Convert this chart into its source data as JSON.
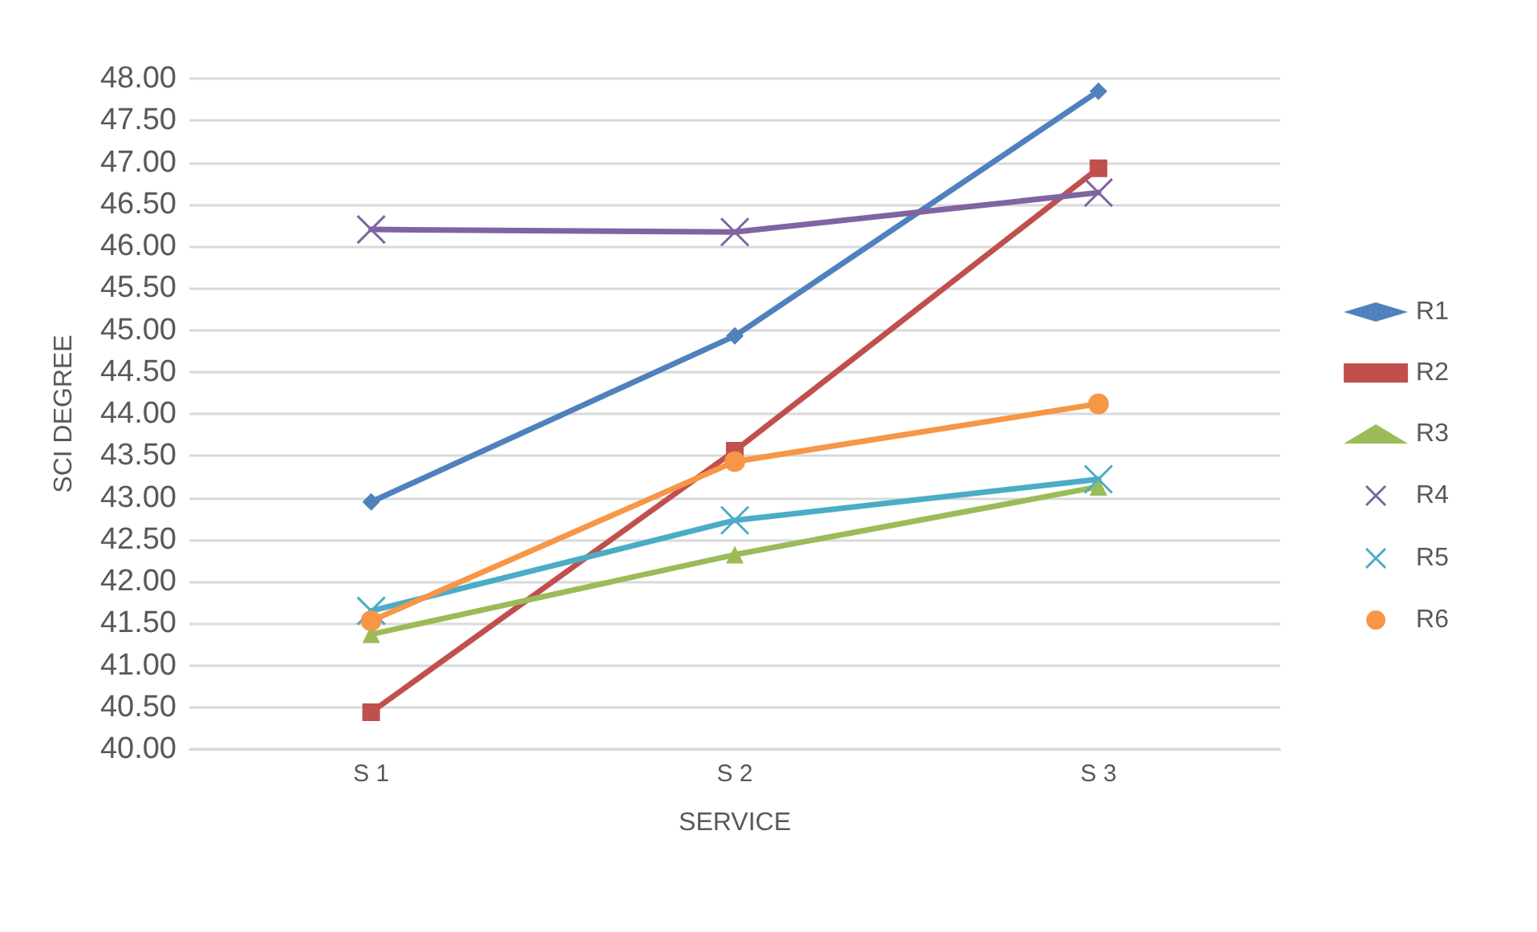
{
  "chart_data": {
    "type": "line",
    "xlabel": "SERVICE",
    "ylabel": "SCI DEGREE",
    "categories": [
      "S 1",
      "S 2",
      "S 3"
    ],
    "series": [
      {
        "name": "R1",
        "color": "#4f81bd",
        "marker": "diamond",
        "values": [
          42.95,
          44.93,
          47.85
        ]
      },
      {
        "name": "R2",
        "color": "#c0504d",
        "marker": "square",
        "values": [
          40.44,
          43.56,
          46.93
        ]
      },
      {
        "name": "R3",
        "color": "#9bbb59",
        "marker": "triangle",
        "values": [
          41.37,
          42.32,
          43.13
        ]
      },
      {
        "name": "R4",
        "color": "#8064a2",
        "marker": "cross",
        "values": [
          46.2,
          46.17,
          46.64
        ]
      },
      {
        "name": "R5",
        "color": "#4bacc6",
        "marker": "cross",
        "values": [
          41.65,
          42.73,
          43.22
        ]
      },
      {
        "name": "R6",
        "color": "#f79646",
        "marker": "circle",
        "values": [
          41.53,
          43.43,
          44.12
        ]
      }
    ],
    "ylim": [
      40,
      48
    ],
    "yticks": [
      {
        "value": 40,
        "label": "40.00"
      },
      {
        "value": 40.5,
        "label": "40.50"
      },
      {
        "value": 41,
        "label": "41.00"
      },
      {
        "value": 41.5,
        "label": "41.50"
      },
      {
        "value": 42,
        "label": "42.00"
      },
      {
        "value": 42.5,
        "label": "42.50"
      },
      {
        "value": 43,
        "label": "43.00"
      },
      {
        "value": 43.5,
        "label": "43.50"
      },
      {
        "value": 44,
        "label": "44.00"
      },
      {
        "value": 44.5,
        "label": "44.50"
      },
      {
        "value": 45,
        "label": "45.00"
      },
      {
        "value": 45.5,
        "label": "45.50"
      },
      {
        "value": 46,
        "label": "46.00"
      },
      {
        "value": 46.5,
        "label": "46.50"
      },
      {
        "value": 47,
        "label": "47.00"
      },
      {
        "value": 47.5,
        "label": "47.50"
      },
      {
        "value": 48,
        "label": "48.00"
      }
    ],
    "grid": "y",
    "legend": "right",
    "line_style": "solid"
  }
}
